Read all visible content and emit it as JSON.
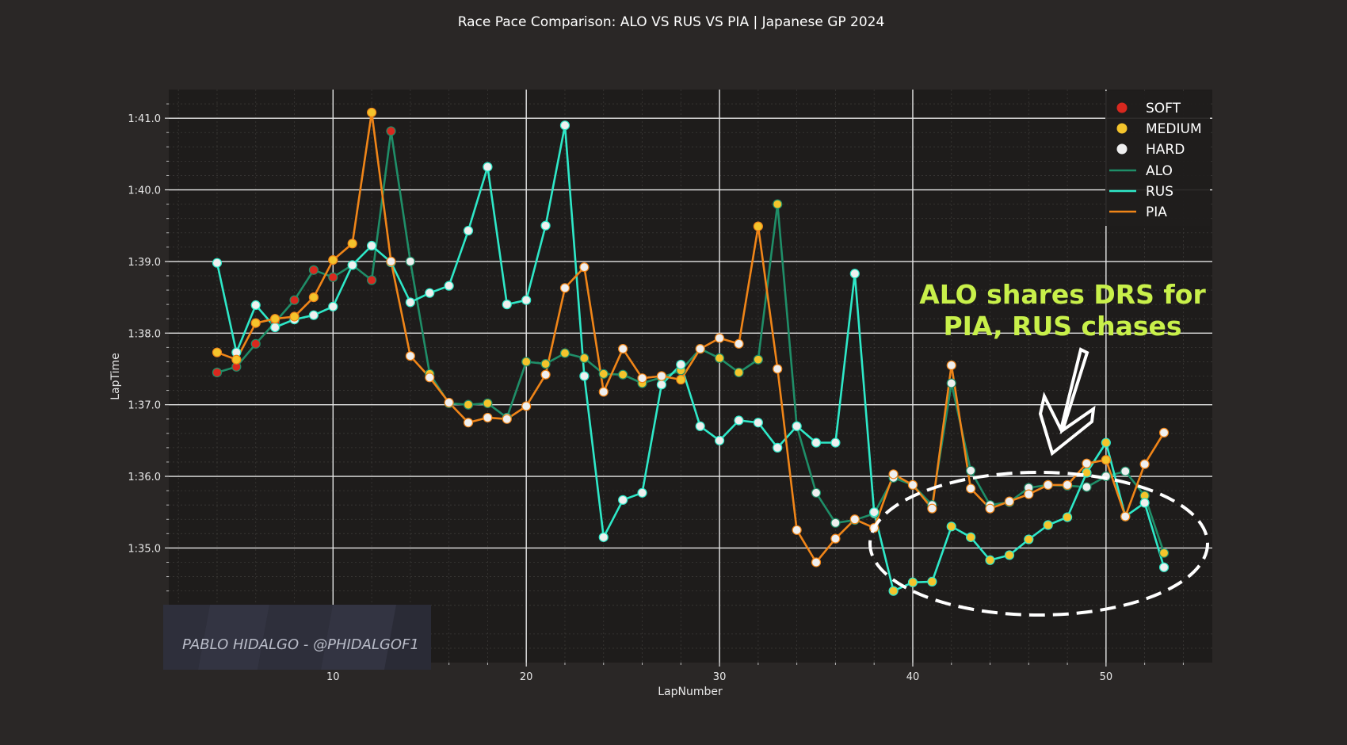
{
  "chart_data": {
    "type": "line",
    "title": "Race Pace Comparison: ALO VS RUS VS PIA | Japanese GP 2024",
    "xlabel": "LapNumber",
    "ylabel": "LapTime",
    "xlim": [
      1.5,
      55.5
    ],
    "ylim": [
      93.4,
      101.4
    ],
    "x_ticks": [
      10,
      20,
      30,
      40,
      50
    ],
    "y_ticks": [
      95,
      96,
      97,
      98,
      99,
      100,
      101
    ],
    "y_tick_labels": [
      "1:35.0",
      "1:36.0",
      "1:37.0",
      "1:38.0",
      "1:39.0",
      "1:40.0",
      "1:41.0"
    ],
    "grid": true,
    "legend_position": "top-right",
    "compound_colors": {
      "SOFT": "#d8281f",
      "MEDIUM": "#f4c42c",
      "HARD": "#efefef"
    },
    "legend": [
      {
        "label": "SOFT",
        "kind": "marker",
        "color": "#d8281f"
      },
      {
        "label": "MEDIUM",
        "kind": "marker",
        "color": "#f4c42c"
      },
      {
        "label": "HARD",
        "kind": "marker",
        "color": "#efefef"
      },
      {
        "label": "ALO",
        "kind": "line",
        "color": "#1f8e68"
      },
      {
        "label": "RUS",
        "kind": "line",
        "color": "#2ee8c8"
      },
      {
        "label": "PIA",
        "kind": "line",
        "color": "#f08518"
      }
    ],
    "series": [
      {
        "name": "ALO",
        "color": "#1f8e68",
        "x": [
          4,
          5,
          6,
          7,
          8,
          9,
          10,
          11,
          12,
          13,
          14,
          15,
          16,
          17,
          18,
          19,
          20,
          21,
          22,
          23,
          24,
          25,
          26,
          27,
          28,
          29,
          30,
          31,
          32,
          33,
          34,
          35,
          36,
          37,
          38,
          39,
          40,
          41,
          42,
          43,
          44,
          45,
          46,
          47,
          48,
          49,
          50,
          51,
          52,
          53
        ],
        "y": [
          97.45,
          97.53,
          97.85,
          98.15,
          98.46,
          98.88,
          98.78,
          98.95,
          98.74,
          100.82,
          99.0,
          97.43,
          97.02,
          97.0,
          97.02,
          96.82,
          97.6,
          97.57,
          97.72,
          97.65,
          97.43,
          97.42,
          97.3,
          97.38,
          97.48,
          97.78,
          97.65,
          97.45,
          97.63,
          99.8,
          96.7,
          95.77,
          95.35,
          95.39,
          95.48,
          95.98,
          95.88,
          95.6,
          97.3,
          96.08,
          95.6,
          95.64,
          95.84,
          95.88,
          95.87,
          95.85,
          96.0,
          96.07,
          95.73,
          94.93
        ],
        "compound": [
          "SOFT",
          "SOFT",
          "SOFT",
          "SOFT",
          "SOFT",
          "SOFT",
          "SOFT",
          "HARD",
          "SOFT",
          "SOFT",
          "HARD",
          "MEDIUM",
          "MEDIUM",
          "MEDIUM",
          "MEDIUM",
          "HARD",
          "MEDIUM",
          "MEDIUM",
          "MEDIUM",
          "MEDIUM",
          "MEDIUM",
          "MEDIUM",
          "MEDIUM",
          "MEDIUM",
          "MEDIUM",
          "MEDIUM",
          "MEDIUM",
          "MEDIUM",
          "MEDIUM",
          "MEDIUM",
          "HARD",
          "HARD",
          "HARD",
          "HARD",
          "HARD",
          "HARD",
          "HARD",
          "HARD",
          "HARD",
          "HARD",
          "HARD",
          "HARD",
          "HARD",
          "HARD",
          "HARD",
          "HARD",
          "HARD",
          "HARD",
          "MEDIUM",
          "MEDIUM"
        ]
      },
      {
        "name": "RUS",
        "color": "#2ee8c8",
        "x": [
          4,
          5,
          6,
          7,
          8,
          9,
          10,
          11,
          12,
          13,
          14,
          15,
          16,
          17,
          18,
          19,
          20,
          21,
          22,
          23,
          24,
          25,
          26,
          27,
          28,
          29,
          30,
          31,
          32,
          33,
          34,
          35,
          36,
          37,
          38,
          39,
          40,
          41,
          42,
          43,
          44,
          45,
          46,
          47,
          48,
          49,
          50,
          51,
          52,
          53
        ],
        "y": [
          98.98,
          97.73,
          98.39,
          98.08,
          98.19,
          98.25,
          98.37,
          98.95,
          99.22,
          98.99,
          98.43,
          98.56,
          98.66,
          99.43,
          100.32,
          98.4,
          98.46,
          99.5,
          100.9,
          97.4,
          95.15,
          95.67,
          95.77,
          97.28,
          97.56,
          96.7,
          96.5,
          96.78,
          96.75,
          96.4,
          96.7,
          96.47,
          96.47,
          98.83,
          95.5,
          94.4,
          94.52,
          94.53,
          95.3,
          95.15,
          94.83,
          94.9,
          95.12,
          95.32,
          95.43,
          96.05,
          96.47,
          95.44,
          95.63,
          94.73
        ],
        "compound": [
          "HARD",
          "HARD",
          "HARD",
          "HARD",
          "HARD",
          "HARD",
          "HARD",
          "HARD",
          "HARD",
          "HARD",
          "HARD",
          "HARD",
          "HARD",
          "HARD",
          "HARD",
          "HARD",
          "HARD",
          "HARD",
          "HARD",
          "HARD",
          "HARD",
          "HARD",
          "HARD",
          "HARD",
          "HARD",
          "HARD",
          "HARD",
          "HARD",
          "HARD",
          "HARD",
          "HARD",
          "HARD",
          "HARD",
          "HARD",
          "HARD",
          "MEDIUM",
          "MEDIUM",
          "MEDIUM",
          "MEDIUM",
          "MEDIUM",
          "MEDIUM",
          "MEDIUM",
          "MEDIUM",
          "MEDIUM",
          "MEDIUM",
          "MEDIUM",
          "MEDIUM",
          "HARD",
          "HARD",
          "HARD"
        ]
      },
      {
        "name": "PIA",
        "color": "#f08518",
        "x": [
          4,
          5,
          6,
          7,
          8,
          9,
          10,
          11,
          12,
          13,
          14,
          15,
          16,
          17,
          18,
          19,
          20,
          21,
          22,
          23,
          24,
          25,
          26,
          27,
          28,
          29,
          30,
          31,
          32,
          33,
          34,
          35,
          36,
          37,
          38,
          39,
          40,
          41,
          42,
          43,
          44,
          45,
          46,
          47,
          48,
          49,
          50,
          51,
          52,
          53
        ],
        "y": [
          97.73,
          97.63,
          98.14,
          98.2,
          98.23,
          98.5,
          99.02,
          99.25,
          101.08,
          99.0,
          97.68,
          97.38,
          97.03,
          96.75,
          96.82,
          96.8,
          96.98,
          97.42,
          98.63,
          98.92,
          97.18,
          97.78,
          97.37,
          97.4,
          97.35,
          97.78,
          97.93,
          97.85,
          99.49,
          97.5,
          95.25,
          94.8,
          95.13,
          95.4,
          95.28,
          96.03,
          95.88,
          95.55,
          97.55,
          95.83,
          95.55,
          95.65,
          95.75,
          95.88,
          95.88,
          96.18,
          96.23,
          95.44,
          96.17,
          96.61
        ],
        "compound": [
          "MEDIUM",
          "MEDIUM",
          "MEDIUM",
          "MEDIUM",
          "MEDIUM",
          "MEDIUM",
          "MEDIUM",
          "MEDIUM",
          "MEDIUM",
          "HARD",
          "HARD",
          "HARD",
          "HARD",
          "HARD",
          "HARD",
          "HARD",
          "HARD",
          "HARD",
          "HARD",
          "HARD",
          "HARD",
          "HARD",
          "HARD",
          "HARD",
          "MEDIUM",
          "HARD",
          "HARD",
          "HARD",
          "MEDIUM",
          "HARD",
          "HARD",
          "HARD",
          "HARD",
          "HARD",
          "HARD",
          "HARD",
          "HARD",
          "HARD",
          "HARD",
          "HARD",
          "HARD",
          "HARD",
          "HARD",
          "HARD",
          "HARD",
          "HARD",
          "MEDIUM",
          "HARD",
          "HARD",
          "HARD"
        ]
      }
    ],
    "annotation": {
      "lines": [
        "ALO shares DRS for",
        "PIA, RUS chases"
      ],
      "color": "#c8f04a"
    }
  },
  "watermark": "PABLO HIDALGO - @PHIDALGOF1"
}
